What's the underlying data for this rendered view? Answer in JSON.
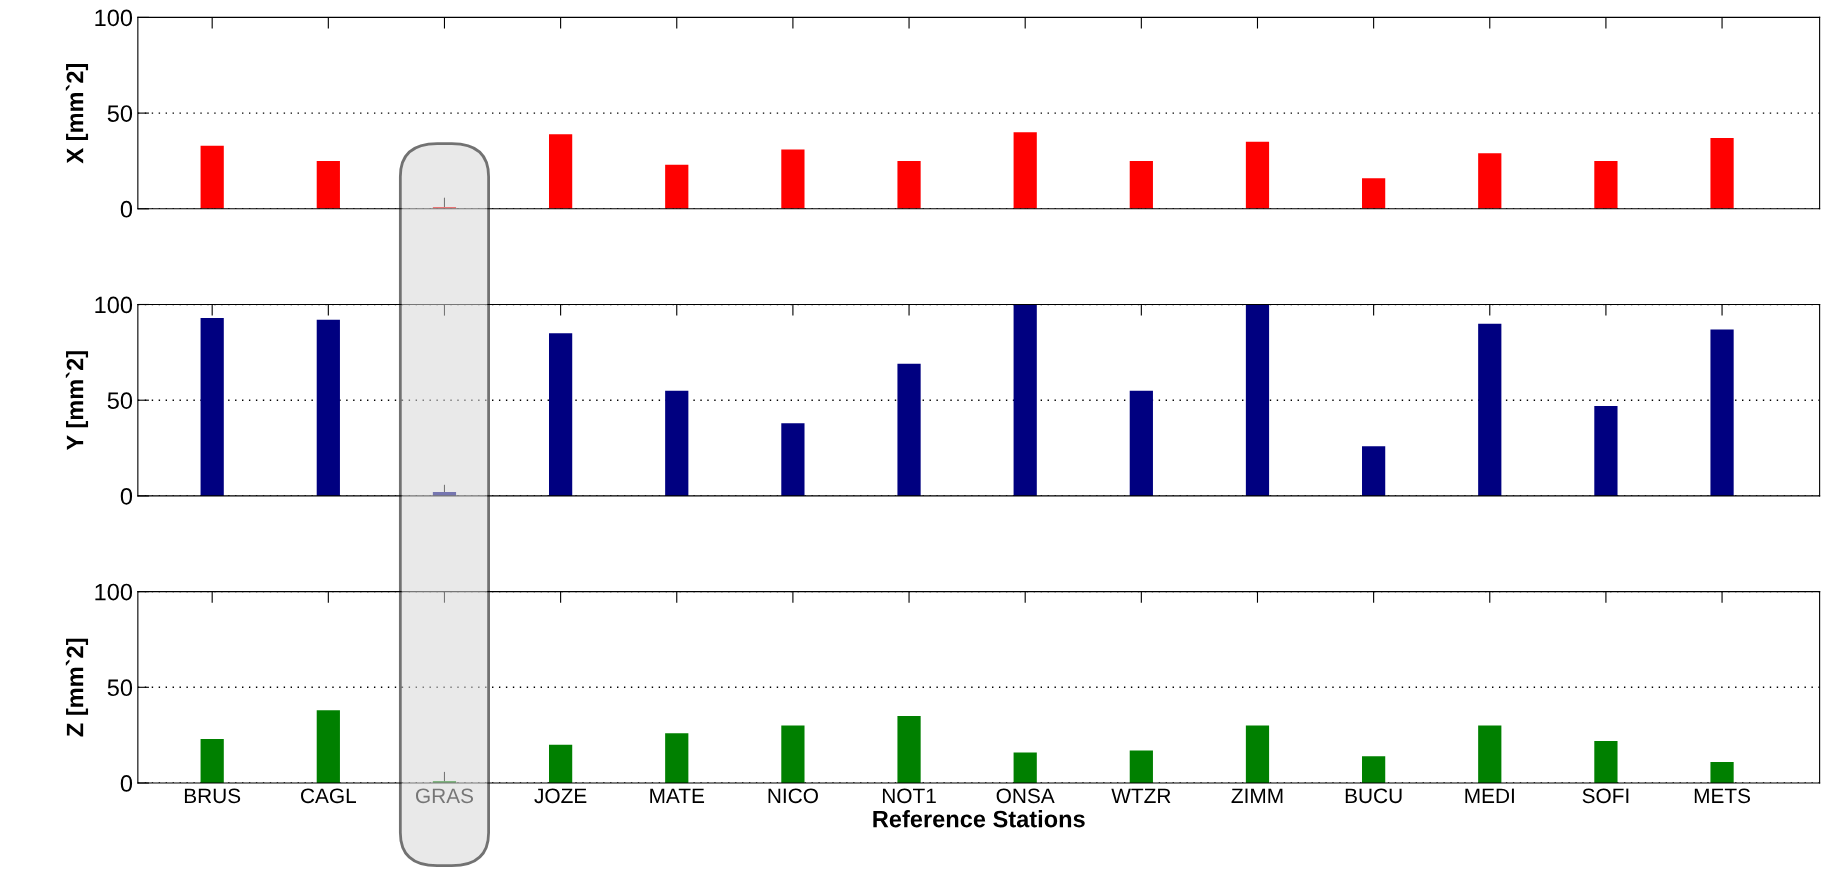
{
  "chart_data": [
    {
      "type": "bar",
      "ylabel": "X [mm`2]",
      "categories": [
        "BRUS",
        "CAGL",
        "GRAS",
        "JOZE",
        "MATE",
        "NICO",
        "NOT1",
        "ONSA",
        "WTZR",
        "ZIMM",
        "BUCU",
        "MEDI",
        "SOFI",
        "METS"
      ],
      "values": [
        33,
        25,
        1,
        39,
        23,
        31,
        25,
        40,
        25,
        35,
        16,
        29,
        25,
        37
      ],
      "color": "#ff0000",
      "ylim": [
        0,
        100
      ],
      "yticks": [
        0,
        50,
        100
      ],
      "grid": "y",
      "tick_labels": "y",
      "bands": [
        {
          "axis": "x",
          "from": "GRAS",
          "to": "GRAS",
          "color": "#d8d8d8"
        }
      ]
    },
    {
      "type": "bar",
      "ylabel": "Y [mm`2]",
      "categories": [
        "BRUS",
        "CAGL",
        "GRAS",
        "JOZE",
        "MATE",
        "NICO",
        "NOT1",
        "ONSA",
        "WTZR",
        "ZIMM",
        "BUCU",
        "MEDI",
        "SOFI",
        "METS"
      ],
      "values": [
        93,
        92,
        2,
        85,
        55,
        38,
        69,
        100,
        55,
        100,
        26,
        90,
        47,
        87
      ],
      "color": "#000080",
      "ylim": [
        0,
        100
      ],
      "yticks": [
        0,
        50,
        100
      ],
      "grid": "y",
      "tick_labels": "y"
    },
    {
      "type": "bar",
      "ylabel": "Z [mm`2]",
      "xlabel": "Reference Stations",
      "categories": [
        "BRUS",
        "CAGL",
        "GRAS",
        "JOZE",
        "MATE",
        "NICO",
        "NOT1",
        "ONSA",
        "WTZR",
        "ZIMM",
        "BUCU",
        "MEDI",
        "SOFI",
        "METS"
      ],
      "values": [
        23,
        38,
        1,
        20,
        26,
        30,
        35,
        16,
        17,
        30,
        14,
        30,
        22,
        11
      ],
      "color": "#008000",
      "ylim": [
        0,
        100
      ],
      "yticks": [
        0,
        50,
        100
      ],
      "grid": "y"
    }
  ]
}
